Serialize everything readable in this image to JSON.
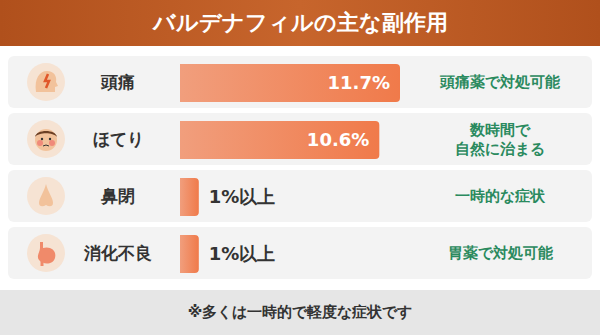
{
  "chart_data": {
    "type": "bar",
    "title": "バルデナフィルの主な副作用",
    "orientation": "horizontal",
    "categories": [
      "頭痛",
      "ほてり",
      "鼻閉",
      "消化不良"
    ],
    "values": [
      11.7,
      10.6,
      1,
      1
    ],
    "value_labels": [
      "11.7%",
      "10.6%",
      "1%以上",
      "1%以上"
    ],
    "data_labels": true,
    "tick_labels": "y",
    "color": "#f07a4a",
    "annotations": [
      [
        "頭痛薬で対処可能"
      ],
      [
        "数時間で",
        "自然に治まる"
      ],
      [
        "一時的な症状"
      ],
      [
        "胃薬で対処可能"
      ]
    ],
    "footnote": "※多くは一時的で軽度な症状です"
  }
}
